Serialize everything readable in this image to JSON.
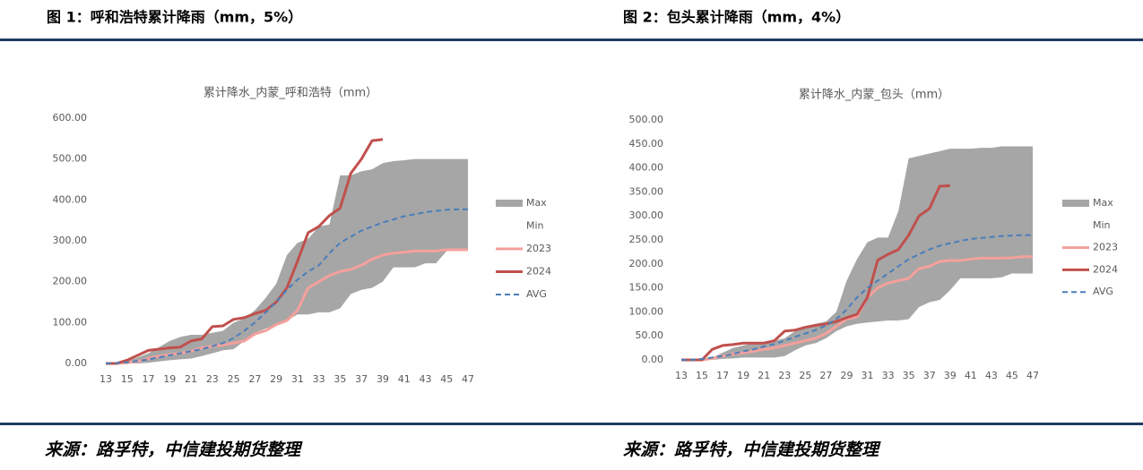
{
  "captions": [
    "图 1：呼和浩特累计降雨（mm，5%）",
    "图 2：包头累计降雨（mm，4%）"
  ],
  "sources": [
    "来源：路孚特，中信建投期货整理",
    "来源：路孚特，中信建投期货整理"
  ],
  "chart_data": [
    {
      "type": "line",
      "title": "累计降水_内蒙_呼和浩特（mm）",
      "x": [
        13,
        14,
        15,
        16,
        17,
        18,
        19,
        20,
        21,
        22,
        23,
        24,
        25,
        26,
        27,
        28,
        29,
        30,
        31,
        32,
        33,
        34,
        35,
        36,
        37,
        38,
        39,
        40,
        41,
        42,
        43,
        44,
        45,
        46,
        47
      ],
      "xlim": [
        13,
        47
      ],
      "xticks": [
        13,
        15,
        17,
        19,
        21,
        23,
        25,
        27,
        29,
        31,
        33,
        35,
        37,
        39,
        41,
        43,
        45,
        47
      ],
      "ylim": [
        0,
        600
      ],
      "yticks": [
        {
          "value": 0,
          "label": "0.00"
        },
        {
          "value": 100,
          "label": "100.00"
        },
        {
          "value": 200,
          "label": "200.00"
        },
        {
          "value": 300,
          "label": "300.00"
        },
        {
          "value": 400,
          "label": "400.00"
        },
        {
          "value": 500,
          "label": "500.00"
        },
        {
          "value": 600,
          "label": "600.00"
        }
      ],
      "legend": "right",
      "series": [
        {
          "name": "Max",
          "color": "#a6a6a6",
          "style": "area",
          "values": [
            0,
            2,
            5,
            15,
            25,
            40,
            55,
            65,
            70,
            70,
            75,
            80,
            100,
            110,
            130,
            160,
            195,
            265,
            295,
            305,
            335,
            340,
            460,
            460,
            470,
            475,
            490,
            495,
            497,
            500,
            500,
            500,
            500,
            500,
            500
          ]
        },
        {
          "name": "Min",
          "color": "#ffffff",
          "style": "area",
          "values": [
            0,
            0,
            0,
            0,
            2,
            5,
            8,
            10,
            12,
            18,
            25,
            32,
            35,
            55,
            75,
            85,
            95,
            105,
            120,
            120,
            125,
            125,
            135,
            170,
            180,
            185,
            200,
            235,
            235,
            235,
            245,
            245,
            275,
            275,
            275
          ]
        },
        {
          "name": "2023",
          "color": "#f4a09c",
          "style": "line",
          "values": [
            0,
            0,
            2,
            5,
            12,
            18,
            22,
            25,
            30,
            38,
            42,
            45,
            50,
            55,
            72,
            80,
            95,
            105,
            130,
            185,
            200,
            215,
            225,
            230,
            240,
            255,
            265,
            270,
            272,
            275,
            275,
            275,
            278,
            278,
            278
          ]
        },
        {
          "name": "2024",
          "color": "#c0504d",
          "style": "line",
          "values": [
            0,
            0,
            8,
            20,
            32,
            35,
            38,
            40,
            55,
            60,
            90,
            92,
            108,
            112,
            122,
            130,
            150,
            185,
            250,
            320,
            335,
            362,
            380,
            465,
            500,
            545,
            548,
            null,
            null,
            null,
            null,
            null,
            null,
            null,
            null
          ]
        },
        {
          "name": "AVG",
          "color": "#4a7ebb",
          "style": "dashed",
          "values": [
            0,
            1,
            3,
            6,
            10,
            15,
            20,
            25,
            30,
            35,
            42,
            50,
            62,
            80,
            100,
            125,
            150,
            180,
            205,
            225,
            240,
            270,
            295,
            310,
            325,
            335,
            345,
            352,
            360,
            365,
            370,
            373,
            376,
            377,
            377
          ]
        }
      ]
    },
    {
      "type": "line",
      "title": "累计降水_内蒙_包头（mm）",
      "x": [
        13,
        14,
        15,
        16,
        17,
        18,
        19,
        20,
        21,
        22,
        23,
        24,
        25,
        26,
        27,
        28,
        29,
        30,
        31,
        32,
        33,
        34,
        35,
        36,
        37,
        38,
        39,
        40,
        41,
        42,
        43,
        44,
        45,
        46,
        47
      ],
      "xlim": [
        13,
        47
      ],
      "xticks": [
        13,
        15,
        17,
        19,
        21,
        23,
        25,
        27,
        29,
        31,
        33,
        35,
        37,
        39,
        41,
        43,
        45,
        47
      ],
      "ylim": [
        0,
        500
      ],
      "yticks": [
        {
          "value": 0,
          "label": "0.00"
        },
        {
          "value": 50,
          "label": "50.00"
        },
        {
          "value": 100,
          "label": "100.00"
        },
        {
          "value": 150,
          "label": "150.00"
        },
        {
          "value": 200,
          "label": "200.00"
        },
        {
          "value": 250,
          "label": "250.00"
        },
        {
          "value": 300,
          "label": "300.00"
        },
        {
          "value": 350,
          "label": "350.00"
        },
        {
          "value": 400,
          "label": "400.00"
        },
        {
          "value": 450,
          "label": "450.00"
        },
        {
          "value": 500,
          "label": "500.00"
        }
      ],
      "legend": "right",
      "series": [
        {
          "name": "Max",
          "color": "#a6a6a6",
          "style": "area",
          "values": [
            0,
            0,
            0,
            5,
            15,
            25,
            30,
            35,
            35,
            40,
            45,
            60,
            70,
            75,
            80,
            100,
            165,
            210,
            245,
            255,
            255,
            310,
            420,
            425,
            430,
            435,
            440,
            440,
            440,
            442,
            442,
            445,
            445,
            445,
            445
          ]
        },
        {
          "name": "Min",
          "color": "#ffffff",
          "style": "area",
          "values": [
            0,
            0,
            0,
            0,
            2,
            3,
            5,
            5,
            5,
            5,
            8,
            20,
            30,
            35,
            45,
            60,
            70,
            75,
            78,
            80,
            82,
            82,
            85,
            110,
            120,
            125,
            145,
            170,
            170,
            170,
            170,
            172,
            180,
            180,
            180
          ]
        },
        {
          "name": "2023",
          "color": "#f4a09c",
          "style": "line",
          "values": [
            0,
            0,
            0,
            3,
            8,
            12,
            15,
            18,
            22,
            25,
            30,
            35,
            40,
            45,
            55,
            70,
            85,
            90,
            130,
            150,
            160,
            165,
            170,
            190,
            195,
            205,
            207,
            207,
            210,
            212,
            212,
            212,
            213,
            215,
            215
          ]
        },
        {
          "name": "2024",
          "color": "#c0504d",
          "style": "line",
          "values": [
            0,
            0,
            0,
            22,
            30,
            32,
            35,
            35,
            35,
            40,
            60,
            62,
            68,
            72,
            75,
            80,
            88,
            95,
            130,
            208,
            220,
            230,
            260,
            300,
            315,
            362,
            363,
            null,
            null,
            null,
            null,
            null,
            null,
            null,
            null
          ]
        },
        {
          "name": "AVG",
          "color": "#4a7ebb",
          "style": "dashed",
          "values": [
            0,
            0,
            2,
            5,
            8,
            12,
            18,
            22,
            28,
            33,
            40,
            48,
            55,
            62,
            72,
            85,
            105,
            130,
            150,
            165,
            180,
            195,
            210,
            220,
            230,
            238,
            243,
            248,
            252,
            254,
            256,
            258,
            259,
            260,
            260
          ]
        }
      ]
    }
  ]
}
